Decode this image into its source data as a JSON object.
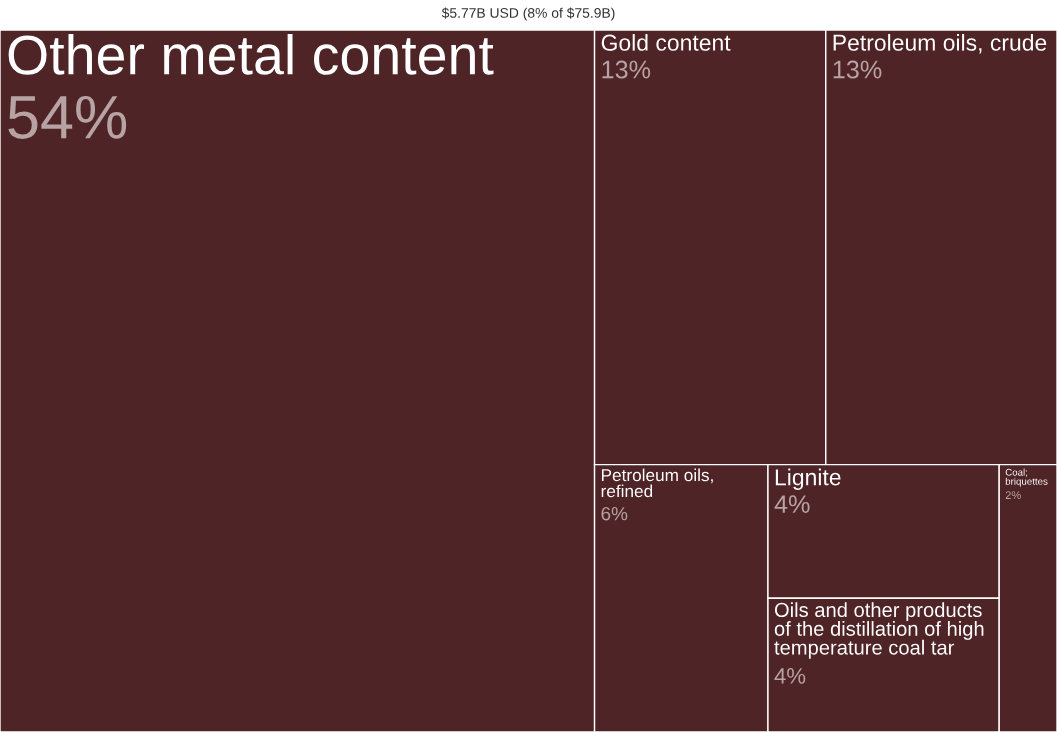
{
  "chart_data": {
    "type": "other",
    "title": "$5.77B USD (8% of $75.9B)",
    "categories": [
      "Other metal content",
      "Gold content",
      "Petroleum oils, crude",
      "Petroleum oils, refined",
      "Lignite",
      "Oils and other products of the distillation of high temperature coal tar",
      "Coal; briquettes"
    ],
    "values": [
      54,
      13,
      13,
      6,
      4,
      4,
      2
    ],
    "value_labels": [
      "54%",
      "13%",
      "13%",
      "6%",
      "4%",
      "4%",
      "2%"
    ],
    "color": "#4f2426"
  }
}
